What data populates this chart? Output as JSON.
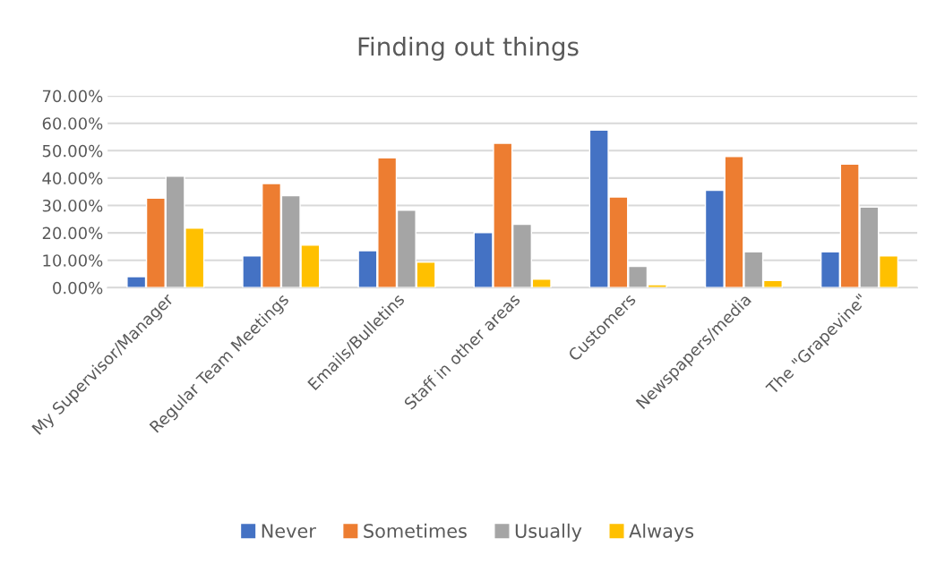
{
  "chart_data": {
    "type": "bar",
    "title": "Finding out things",
    "categories": [
      "My Supervisor/Manager",
      "Regular Team Meetings",
      "Emails/Bulletins",
      "Staff in other areas",
      "Customers",
      "Newspapers/media",
      "The \"Grapevine\""
    ],
    "series": [
      {
        "name": "Never",
        "color": "#4472c4",
        "values": [
          4.0,
          11.6,
          13.5,
          20.1,
          57.5,
          35.5,
          13.1
        ]
      },
      {
        "name": "Sometimes",
        "color": "#ed7d31",
        "values": [
          32.7,
          38.0,
          47.4,
          52.7,
          33.1,
          47.9,
          45.1
        ]
      },
      {
        "name": "Usually",
        "color": "#a5a5a5",
        "values": [
          40.7,
          33.6,
          28.3,
          23.1,
          7.8,
          13.1,
          29.4
        ]
      },
      {
        "name": "Always",
        "color": "#ffc000",
        "values": [
          21.7,
          15.5,
          9.3,
          3.1,
          1.1,
          2.6,
          11.6
        ]
      }
    ],
    "ylim": [
      0,
      70
    ],
    "yticks": [
      {
        "value": 0,
        "label": "0.00%"
      },
      {
        "value": 10,
        "label": "10.00%"
      },
      {
        "value": 20,
        "label": "20.00%"
      },
      {
        "value": 30,
        "label": "30.00%"
      },
      {
        "value": 40,
        "label": "40.00%"
      },
      {
        "value": 50,
        "label": "50.00%"
      },
      {
        "value": 60,
        "label": "60.00%"
      },
      {
        "value": 70,
        "label": "70.00%"
      }
    ],
    "grid": "y",
    "legend": "bottom"
  }
}
